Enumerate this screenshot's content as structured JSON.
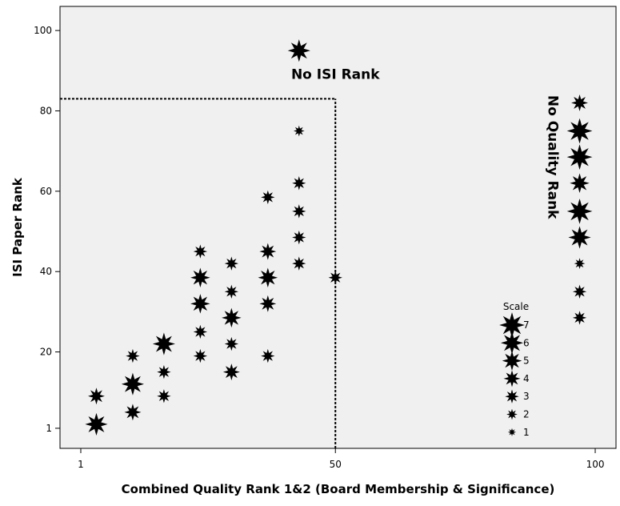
{
  "chart_data": {
    "type": "scatter",
    "title": "",
    "xlabel": "Combined Quality Rank 1&2 (Board Membership & Significance)",
    "ylabel": "ISI Paper Rank",
    "xlim": [
      -3,
      104
    ],
    "ylim": [
      -4,
      106
    ],
    "x_ticks": [
      1,
      50,
      100
    ],
    "y_ticks": [
      1,
      20,
      40,
      60,
      80,
      100
    ],
    "grid": false,
    "marker": "star",
    "background": "#f0f0f0",
    "points": [
      {
        "x": 4,
        "y": 9,
        "size": 4
      },
      {
        "x": 4,
        "y": 2,
        "size": 6
      },
      {
        "x": 11,
        "y": 19,
        "size": 3
      },
      {
        "x": 11,
        "y": 12,
        "size": 6
      },
      {
        "x": 11,
        "y": 5,
        "size": 4
      },
      {
        "x": 17,
        "y": 22,
        "size": 6
      },
      {
        "x": 17,
        "y": 15,
        "size": 3
      },
      {
        "x": 17,
        "y": 9,
        "size": 3
      },
      {
        "x": 24,
        "y": 45,
        "size": 3
      },
      {
        "x": 24,
        "y": 38.5,
        "size": 5
      },
      {
        "x": 24,
        "y": 32,
        "size": 5
      },
      {
        "x": 24,
        "y": 25,
        "size": 3
      },
      {
        "x": 24,
        "y": 19,
        "size": 3
      },
      {
        "x": 30,
        "y": 42,
        "size": 3
      },
      {
        "x": 30,
        "y": 35,
        "size": 3
      },
      {
        "x": 30,
        "y": 28.5,
        "size": 5
      },
      {
        "x": 30,
        "y": 22,
        "size": 3
      },
      {
        "x": 30,
        "y": 15,
        "size": 4
      },
      {
        "x": 37,
        "y": 58.5,
        "size": 3
      },
      {
        "x": 37,
        "y": 45,
        "size": 4
      },
      {
        "x": 37,
        "y": 38.5,
        "size": 5
      },
      {
        "x": 37,
        "y": 32,
        "size": 4
      },
      {
        "x": 37,
        "y": 19,
        "size": 3
      },
      {
        "x": 43,
        "y": 95,
        "size": 6
      },
      {
        "x": 43,
        "y": 75,
        "size": 2
      },
      {
        "x": 43,
        "y": 62,
        "size": 3
      },
      {
        "x": 43,
        "y": 55,
        "size": 3
      },
      {
        "x": 43,
        "y": 48.5,
        "size": 3
      },
      {
        "x": 43,
        "y": 42,
        "size": 3
      },
      {
        "x": 50,
        "y": 38.5,
        "size": 3
      },
      {
        "x": 97,
        "y": 82,
        "size": 4
      },
      {
        "x": 97,
        "y": 75,
        "size": 7
      },
      {
        "x": 97,
        "y": 68.5,
        "size": 7
      },
      {
        "x": 97,
        "y": 62,
        "size": 5
      },
      {
        "x": 97,
        "y": 55,
        "size": 7
      },
      {
        "x": 97,
        "y": 48.5,
        "size": 6
      },
      {
        "x": 97,
        "y": 42,
        "size": 2
      },
      {
        "x": 97,
        "y": 35,
        "size": 3
      },
      {
        "x": 97,
        "y": 28.5,
        "size": 3
      }
    ],
    "reference_lines": [
      {
        "type": "horizontal",
        "y": 83,
        "x_from": -3,
        "x_to": 50,
        "style": "dashed"
      },
      {
        "type": "vertical",
        "x": 50,
        "y_from": -4,
        "y_to": 83,
        "style": "dashed"
      }
    ],
    "annotations": [
      {
        "text": "No ISI Rank",
        "x": 50,
        "y": 88
      },
      {
        "text": "No Quality Rank",
        "x": 91,
        "y": 68.5,
        "rotation": 90
      }
    ],
    "legend": {
      "title": "Scale",
      "placement": "inside-bottom-right",
      "items": [
        {
          "label": "7",
          "size": 7
        },
        {
          "label": "6",
          "size": 6
        },
        {
          "label": "5",
          "size": 5
        },
        {
          "label": "4",
          "size": 4
        },
        {
          "label": "3",
          "size": 3
        },
        {
          "label": "2",
          "size": 2
        },
        {
          "label": "1",
          "size": 1
        }
      ]
    }
  }
}
